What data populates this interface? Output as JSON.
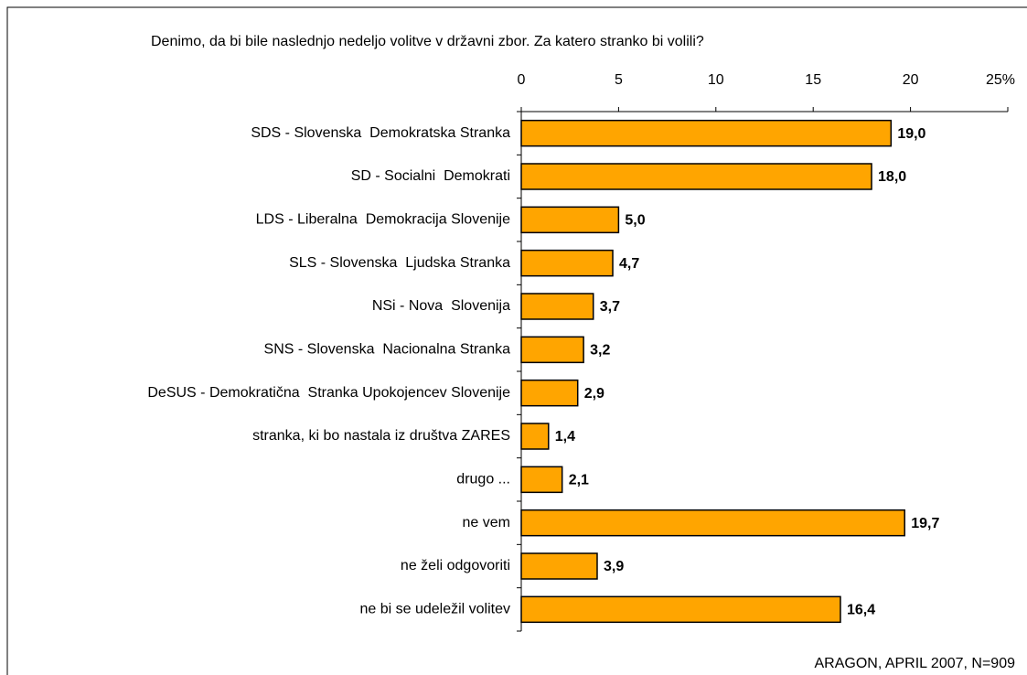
{
  "chart_data": {
    "type": "bar",
    "orientation": "horizontal",
    "title": "Denimo, da bi bile naslednjo nedeljo volitve v državni zbor. Za katero stranko bi volili?",
    "categories": [
      "SDS - Slovenska  Demokratska Stranka",
      "SD - Socialni  Demokrati",
      "LDS - Liberalna  Demokracija Slovenije",
      "SLS - Slovenska  Ljudska Stranka",
      "NSi - Nova  Slovenija",
      "SNS - Slovenska  Nacionalna Stranka",
      "DeSUS - Demokratična  Stranka Upokojencev Slovenije",
      "stranka, ki bo nastala iz društva ZARES",
      "drugo ...",
      "ne vem",
      "ne želi odgovoriti",
      "ne bi se udeležil volitev"
    ],
    "values": [
      19.0,
      18.0,
      5.0,
      4.7,
      3.7,
      3.2,
      2.9,
      1.4,
      2.1,
      19.7,
      3.9,
      16.4
    ],
    "value_labels": [
      "19,0",
      "18,0",
      "5,0",
      "4,7",
      "3,7",
      "3,2",
      "2,9",
      "1,4",
      "2,1",
      "19,7",
      "3,9",
      "16,4"
    ],
    "color": "#ffa500",
    "xlim": [
      0,
      25
    ],
    "xticks": [
      0,
      5,
      10,
      15,
      20,
      {
        "value": 25,
        "label": "25%"
      }
    ],
    "source": "ARAGON, APRIL 2007, N=909"
  }
}
